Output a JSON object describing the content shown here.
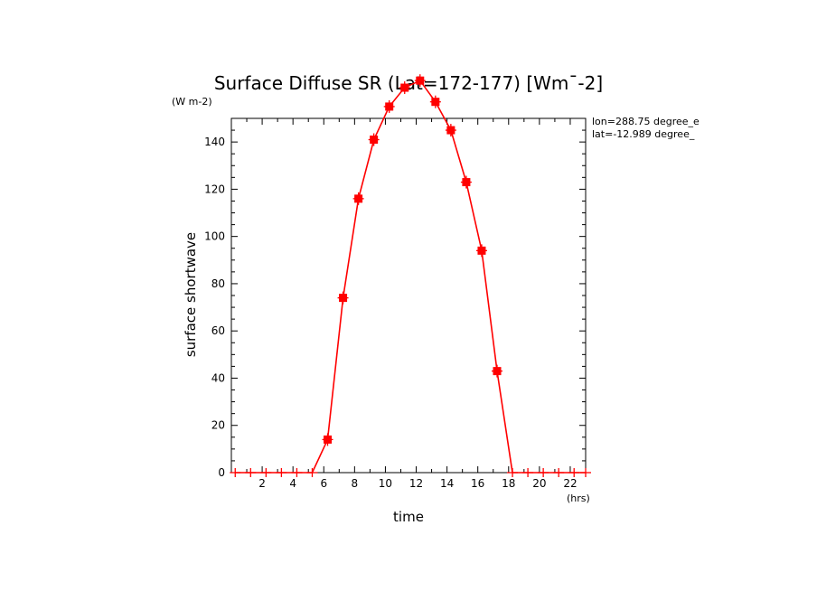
{
  "chart_data": {
    "type": "line",
    "title": "Surface Diffuse SR (Lat=172-177) [Wm¯-2]",
    "xlabel": "time",
    "ylabel": "surface shortwave",
    "x_unit": "(hrs)",
    "y_unit": "(W m-2)",
    "annotations": [
      "lon=288.75 degree_e",
      "lat=-12.989 degree_"
    ],
    "xlim": [
      0,
      23
    ],
    "ylim": [
      0,
      150
    ],
    "x_ticks": [
      2,
      4,
      6,
      8,
      10,
      12,
      14,
      16,
      18,
      20,
      22
    ],
    "y_ticks": [
      0,
      20,
      40,
      60,
      80,
      100,
      120,
      140
    ],
    "grid": false,
    "color": "#ff0000",
    "series": [
      {
        "x": [
          0.25,
          1.25,
          2.25,
          3.25,
          4.25,
          5.25,
          6.25,
          7.25,
          8.25,
          9.25,
          10.25,
          11.25,
          12.25,
          13.25,
          14.25,
          15.25,
          16.25,
          17.25,
          18.25,
          19.25,
          20.25,
          21.25,
          22.25,
          23.0
        ],
        "values": [
          0,
          0,
          0,
          0,
          0,
          0,
          14,
          74,
          116,
          141,
          155,
          163,
          166,
          157,
          145,
          123,
          94,
          43,
          0,
          0,
          0,
          0,
          0,
          0
        ]
      }
    ]
  }
}
